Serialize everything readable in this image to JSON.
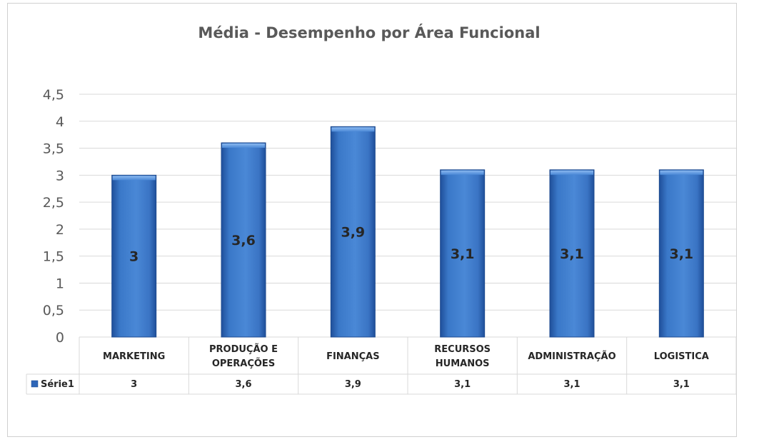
{
  "chart_data": {
    "type": "bar",
    "title": "Média - Desempenho por Área Funcional",
    "categories": [
      "MARKETING",
      "PRODUÇÃO E OPERAÇÕES",
      "FINANÇAS",
      "RECURSOS HUMANOS",
      "ADMINISTRAÇÃO",
      "LOGISTICA"
    ],
    "series": [
      {
        "name": "Série1",
        "values": [
          3,
          3.6,
          3.9,
          3.1,
          3.1,
          3.1
        ]
      }
    ],
    "data_labels": [
      "3",
      "3,6",
      "3,9",
      "3,1",
      "3,1",
      "3,1"
    ],
    "y_ticks": [
      0,
      0.5,
      1,
      1.5,
      2,
      2.5,
      3,
      3.5,
      4,
      4.5
    ],
    "y_tick_labels": [
      "0",
      "0,5",
      "1",
      "1,5",
      "2",
      "2,5",
      "3",
      "3,5",
      "4",
      "4,5"
    ],
    "ylim": [
      0,
      4.5
    ],
    "grid": true,
    "legend": "data-table",
    "colors": {
      "bar": "#3a78c8",
      "bar_dark": "#1f4f9a",
      "bar_light": "#6fa3e6",
      "grid": "#d9d9d9",
      "legend_key": "#2e66b8"
    }
  }
}
